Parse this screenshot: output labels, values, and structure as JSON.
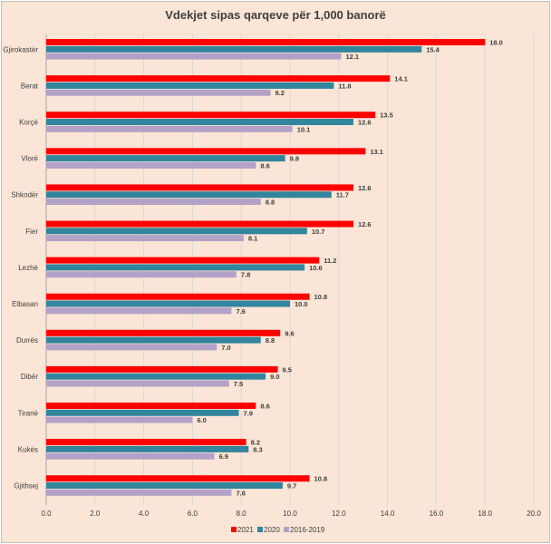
{
  "chart_data": {
    "type": "bar",
    "orientation": "horizontal",
    "title": "Vdekjet sipas qarqeve për 1,000 banorë",
    "categories": [
      "Gjirokastër",
      "Berat",
      "Korçë",
      "Vlorë",
      "Shkodër",
      "Fier",
      "Lezhë",
      "Elbasan",
      "Durrës",
      "Dibër",
      "Tiranë",
      "Kukës",
      "Gjithsej"
    ],
    "series": [
      {
        "name": "2021",
        "color": "#ff0000",
        "values": [
          18.0,
          14.1,
          13.5,
          13.1,
          12.6,
          12.6,
          11.2,
          10.8,
          9.6,
          9.5,
          8.6,
          8.2,
          10.8
        ]
      },
      {
        "name": "2020",
        "color": "#31859c",
        "values": [
          15.4,
          11.8,
          12.6,
          9.8,
          11.7,
          10.7,
          10.6,
          10.0,
          8.8,
          9.0,
          7.9,
          8.3,
          9.7
        ]
      },
      {
        "name": "2016-2019",
        "color": "#b3a2c7",
        "values": [
          12.1,
          9.2,
          10.1,
          8.6,
          8.8,
          8.1,
          7.8,
          7.6,
          7.0,
          7.5,
          6.0,
          6.9,
          7.6
        ]
      }
    ],
    "xlim": [
      0,
      20
    ],
    "ticks": [
      "0.0",
      "2.0",
      "4.0",
      "6.0",
      "8.0",
      "10.0",
      "12.0",
      "14.0",
      "16.0",
      "18.0",
      "20.0"
    ],
    "tick_values": [
      0,
      2,
      4,
      6,
      8,
      10,
      12,
      14,
      16,
      18,
      20
    ],
    "grid": "vertical",
    "legend_position": "bottom"
  }
}
